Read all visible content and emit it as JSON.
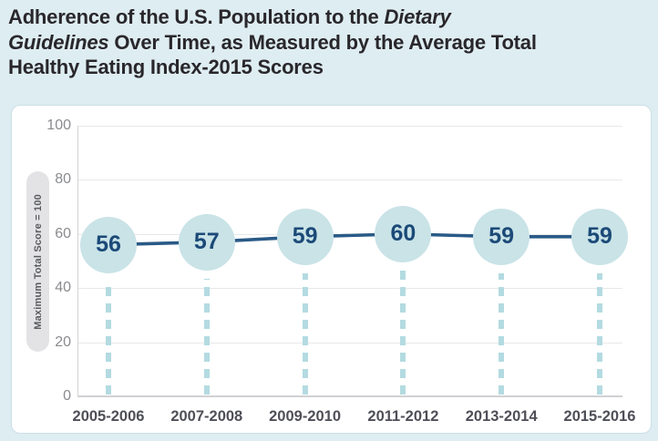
{
  "page": {
    "background": "#deedf1"
  },
  "title": {
    "l1a": "Adherence of the U.S. Population to the ",
    "l1b": "Dietary",
    "l2a": "Guidelines",
    "l2b": " Over Time, as Measured by the Average Total",
    "l3": "Healthy Eating Index-2015 Scores"
  },
  "colors": {
    "title_text": "#29272c",
    "card_bg": "#ffffff",
    "card_border": "#cbdfe7",
    "grid_line": "#e7e8e9",
    "axis_line": "#d0d1d4",
    "y_tick_text": "#8a8b8e",
    "x_label_text": "#4e4f57",
    "trend_line": "#2a5a87",
    "point_fill": "#c9e3e7",
    "point_text": "#1c4a78",
    "drop_dash": "#b3dbe1",
    "pill_bg": "#e3e3e6",
    "pill_text": "#5a5b5f"
  },
  "chart_data": {
    "type": "line",
    "title": "Adherence of the U.S. Population to the Dietary Guidelines Over Time, as Measured by the Average Total Healthy Eating Index-2015 Scores",
    "categories": [
      "2005-2006",
      "2007-2008",
      "2009-2010",
      "2011-2012",
      "2013-2014",
      "2015-2016"
    ],
    "values": [
      56,
      57,
      59,
      60,
      59,
      59
    ],
    "xlabel": "",
    "ylabel": "Maximum Total Score = 100",
    "ylim": [
      0,
      100
    ],
    "yticks": [
      0,
      20,
      40,
      60,
      80,
      100
    ],
    "grid": true,
    "legend": "none",
    "point_labels_shown": true
  }
}
